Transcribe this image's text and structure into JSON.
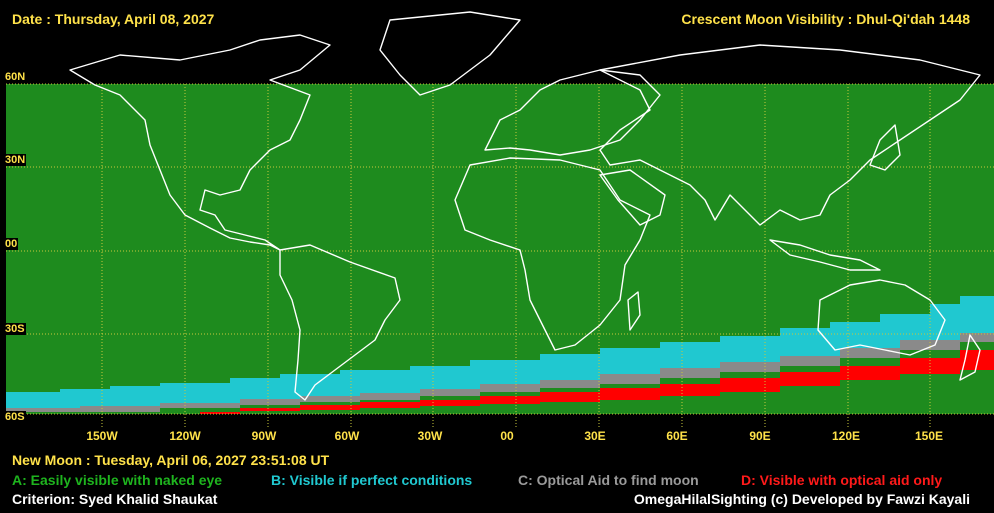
{
  "header": {
    "date": "Date : Thursday, April 08, 2027",
    "title": "Crescent Moon Visibility : Dhul-Qi'dah  1448"
  },
  "map": {
    "lat_labels": [
      "60N",
      "30N",
      "00",
      "30S",
      "60S"
    ],
    "lon_labels": [
      "150W",
      "120W",
      "90W",
      "60W",
      "30W",
      "00",
      "30E",
      "60E",
      "90E",
      "120E",
      "150E"
    ],
    "zone_colors": {
      "A": "#1e8b1e",
      "B": "#20c8d0",
      "C": "#8a8a8a",
      "D": "#ff0000",
      "grid": "#c8c83c",
      "coast": "#ffffff"
    }
  },
  "footer": {
    "new_moon": "New Moon : Tuesday, April 06, 2027  23:51:08  UT",
    "legend": {
      "a": "A: Easily visible with naked eye",
      "b": "B: Visible if perfect conditions",
      "c": "C: Optical Aid to find moon",
      "d": "D: Visible with optical aid only"
    },
    "criterion": "Criterion: Syed Khalid Shaukat",
    "credit": "OmegaHilalSighting  (c) Developed by Fawzi Kayali"
  }
}
